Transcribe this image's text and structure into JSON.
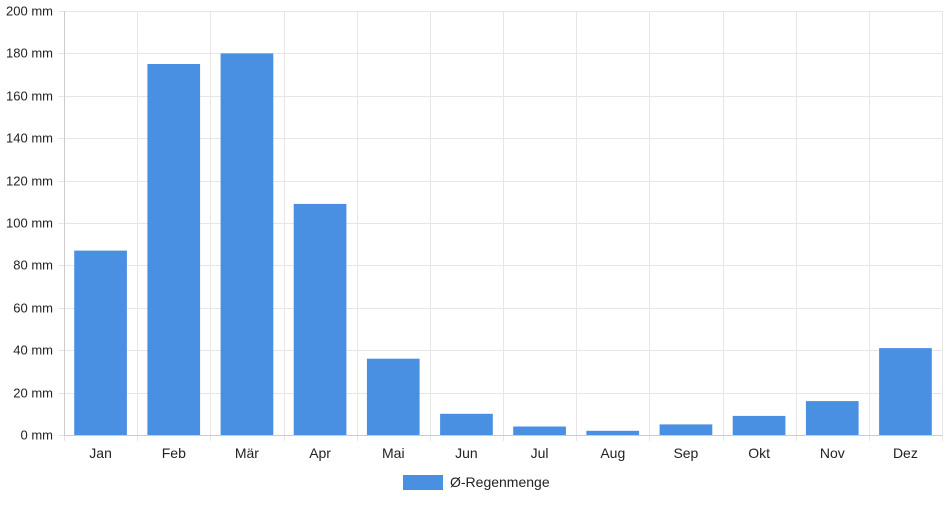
{
  "chart_data": {
    "type": "bar",
    "title": "",
    "xlabel": "",
    "ylabel": "",
    "categories": [
      "Jan",
      "Feb",
      "Mär",
      "Apr",
      "Mai",
      "Jun",
      "Jul",
      "Aug",
      "Sep",
      "Okt",
      "Nov",
      "Dez"
    ],
    "series": [
      {
        "name": "Ø-Regenmenge",
        "color": "#4a90e2",
        "values": [
          87,
          175,
          180,
          109,
          36,
          10,
          4,
          2,
          5,
          9,
          16,
          41
        ]
      }
    ],
    "ylim": [
      0,
      200
    ],
    "y_ticks": [
      0,
      20,
      40,
      60,
      80,
      100,
      120,
      140,
      160,
      180,
      200
    ],
    "y_tick_labels": [
      "0 mm",
      "20 mm",
      "40 mm",
      "60 mm",
      "80 mm",
      "100 mm",
      "120 mm",
      "140 mm",
      "160 mm",
      "180 mm",
      "200 mm"
    ],
    "grid": true,
    "legend_position": "bottom-center",
    "colors": {
      "grid": "#e6e6e6",
      "axis": "#cccccc",
      "text": "#222222"
    }
  }
}
